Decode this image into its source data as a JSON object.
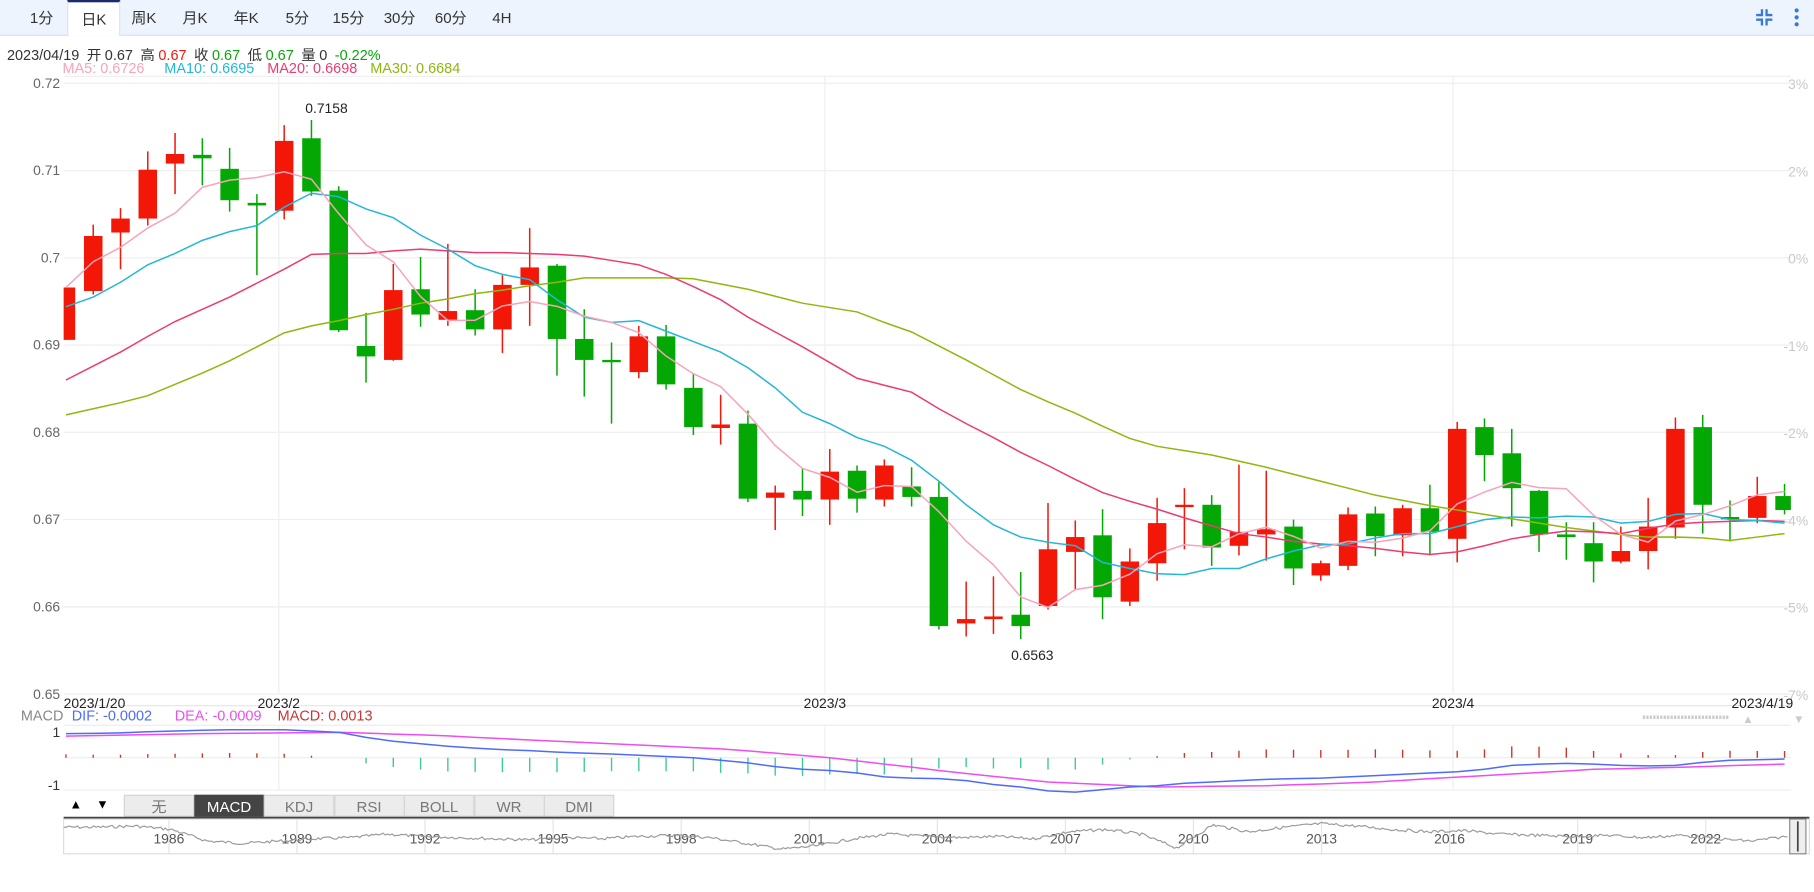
{
  "period_tabs": [
    "1分",
    "日K",
    "周K",
    "月K",
    "年K",
    "5分",
    "15分",
    "30分",
    "60分",
    "4H"
  ],
  "active_period": "日K",
  "toolbar_icons": [
    "compress-icon",
    "more-vertical-icon"
  ],
  "info": {
    "date": "2023/04/19",
    "open_label": "开",
    "open": "0.67",
    "high_label": "高",
    "high": "0.67",
    "close_label": "收",
    "close": "0.67",
    "low_label": "低",
    "low": "0.67",
    "volume_label": "量",
    "volume": "0",
    "change": "-0.22%"
  },
  "ma_legend": [
    {
      "label": "MA5: 0.6726",
      "color": "#f7a3bb"
    },
    {
      "label": "MA10: 0.6695",
      "color": "#25b6d8"
    },
    {
      "label": "MA20: 0.6698",
      "color": "#ec3b73"
    },
    {
      "label": "MA30: 0.6684",
      "color": "#8db80e"
    }
  ],
  "colors": {
    "up": "#f21707",
    "down": "#04a804",
    "grid": "#eeeeee"
  },
  "chart_data": {
    "type": "candlestick",
    "yaxis_left": {
      "ticks": [
        "0.72",
        "0.71",
        "0.7",
        "0.69",
        "0.68",
        "0.67",
        "0.66",
        "0.65"
      ],
      "range": [
        0.65,
        0.72
      ]
    },
    "yaxis_right": {
      "ticks": [
        "3%",
        "2%",
        "0%",
        "-1%",
        "-2%",
        "-4%",
        "-5%",
        "-7%"
      ]
    },
    "xaxis_labels": [
      "2023/1/20",
      "2023/2",
      "2023/3",
      "2023/4",
      "2023/4/19"
    ],
    "annotations": {
      "max": "0.7158",
      "min": "0.6563"
    },
    "ohlc": [
      [
        0.6906,
        0.6966,
        0.6906,
        0.6966
      ],
      [
        0.6962,
        0.7038,
        0.6958,
        0.7025
      ],
      [
        0.7029,
        0.7057,
        0.6987,
        0.7045
      ],
      [
        0.7045,
        0.7122,
        0.7037,
        0.7101
      ],
      [
        0.7108,
        0.7143,
        0.7073,
        0.7119
      ],
      [
        0.7118,
        0.7137,
        0.7083,
        0.7114
      ],
      [
        0.7102,
        0.7126,
        0.7053,
        0.7066
      ],
      [
        0.7063,
        0.7073,
        0.698,
        0.706
      ],
      [
        0.7054,
        0.7152,
        0.7044,
        0.7134
      ],
      [
        0.7137,
        0.7158,
        0.7071,
        0.7076
      ],
      [
        0.7077,
        0.7082,
        0.6915,
        0.6917
      ],
      [
        0.6899,
        0.6937,
        0.6857,
        0.6887
      ],
      [
        0.6883,
        0.6993,
        0.6882,
        0.6963
      ],
      [
        0.6964,
        0.7001,
        0.6921,
        0.6935
      ],
      [
        0.6929,
        0.7016,
        0.6922,
        0.6939
      ],
      [
        0.694,
        0.6964,
        0.6911,
        0.6918
      ],
      [
        0.6918,
        0.698,
        0.6891,
        0.6969
      ],
      [
        0.6969,
        0.7034,
        0.6922,
        0.6989
      ],
      [
        0.6991,
        0.6993,
        0.6865,
        0.6907
      ],
      [
        0.6907,
        0.6941,
        0.6841,
        0.6883
      ],
      [
        0.6883,
        0.6903,
        0.681,
        0.6882
      ],
      [
        0.6869,
        0.6922,
        0.6862,
        0.691
      ],
      [
        0.691,
        0.6923,
        0.6849,
        0.6855
      ],
      [
        0.6851,
        0.6867,
        0.6797,
        0.6806
      ],
      [
        0.6805,
        0.6843,
        0.6786,
        0.6809
      ],
      [
        0.681,
        0.6825,
        0.672,
        0.6724
      ],
      [
        0.6725,
        0.6739,
        0.6688,
        0.6731
      ],
      [
        0.6733,
        0.6758,
        0.6704,
        0.6723
      ],
      [
        0.6723,
        0.6781,
        0.6694,
        0.6755
      ],
      [
        0.6756,
        0.6762,
        0.6708,
        0.6724
      ],
      [
        0.6723,
        0.6769,
        0.6715,
        0.6762
      ],
      [
        0.6738,
        0.676,
        0.6715,
        0.6726
      ],
      [
        0.6726,
        0.6743,
        0.6574,
        0.6578
      ],
      [
        0.6581,
        0.6629,
        0.6566,
        0.6586
      ],
      [
        0.6586,
        0.6635,
        0.6569,
        0.6589
      ],
      [
        0.6591,
        0.664,
        0.6563,
        0.6578
      ],
      [
        0.6601,
        0.6719,
        0.6597,
        0.6666
      ],
      [
        0.6663,
        0.6699,
        0.662,
        0.668
      ],
      [
        0.6682,
        0.6712,
        0.6586,
        0.6611
      ],
      [
        0.6606,
        0.6667,
        0.6601,
        0.6652
      ],
      [
        0.665,
        0.6725,
        0.663,
        0.6696
      ],
      [
        0.6715,
        0.6736,
        0.6666,
        0.6717
      ],
      [
        0.6717,
        0.6728,
        0.6647,
        0.6668
      ],
      [
        0.667,
        0.6763,
        0.6659,
        0.6686
      ],
      [
        0.6683,
        0.6756,
        0.6653,
        0.6689
      ],
      [
        0.6692,
        0.67,
        0.6625,
        0.6644
      ],
      [
        0.6636,
        0.6653,
        0.663,
        0.665
      ],
      [
        0.6647,
        0.6714,
        0.6642,
        0.6706
      ],
      [
        0.6707,
        0.6715,
        0.6658,
        0.6681
      ],
      [
        0.6682,
        0.6717,
        0.6658,
        0.6713
      ],
      [
        0.6713,
        0.674,
        0.6659,
        0.6686
      ],
      [
        0.6678,
        0.6812,
        0.6651,
        0.6804
      ],
      [
        0.6806,
        0.6816,
        0.6744,
        0.6774
      ],
      [
        0.6776,
        0.6804,
        0.6692,
        0.6736
      ],
      [
        0.6733,
        0.6734,
        0.6663,
        0.6683
      ],
      [
        0.6683,
        0.6697,
        0.6654,
        0.668
      ],
      [
        0.6673,
        0.6697,
        0.6628,
        0.6652
      ],
      [
        0.6652,
        0.6692,
        0.665,
        0.6664
      ],
      [
        0.6664,
        0.6725,
        0.6643,
        0.6692
      ],
      [
        0.6691,
        0.6817,
        0.6678,
        0.6804
      ],
      [
        0.6806,
        0.682,
        0.6684,
        0.6717
      ],
      [
        0.6703,
        0.6722,
        0.6675,
        0.6702
      ],
      [
        0.6702,
        0.6749,
        0.6696,
        0.6727
      ],
      [
        0.6727,
        0.6741,
        0.6706,
        0.6711
      ]
    ],
    "ma10": [
      0.6944,
      0.6955,
      0.6972,
      0.6992,
      0.7005,
      0.702,
      0.703,
      0.7037,
      0.7058,
      0.7074,
      0.707,
      0.7056,
      0.7046,
      0.7026,
      0.701,
      0.6991,
      0.6981,
      0.6975,
      0.6952,
      0.6932,
      0.6926,
      0.6928,
      0.6916,
      0.6904,
      0.6892,
      0.6874,
      0.6851,
      0.6823,
      0.681,
      0.6794,
      0.6784,
      0.6768,
      0.6744,
      0.6717,
      0.6694,
      0.668,
      0.6674,
      0.667,
      0.6651,
      0.6644,
      0.6638,
      0.6637,
      0.6644,
      0.6644,
      0.6655,
      0.6664,
      0.6671,
      0.6672,
      0.6679,
      0.6684,
      0.6684,
      0.6692,
      0.67,
      0.6703,
      0.6702,
      0.6704,
      0.6703,
      0.6696,
      0.6698,
      0.6706,
      0.6707,
      0.67,
      0.6699,
      0.6696
    ],
    "ma20": [
      0.686,
      0.6876,
      0.6892,
      0.691,
      0.6927,
      0.6941,
      0.6955,
      0.6971,
      0.6987,
      0.7004,
      0.7005,
      0.7005,
      0.7008,
      0.701,
      0.7008,
      0.7006,
      0.7006,
      0.7005,
      0.7004,
      0.7002,
      0.6997,
      0.6992,
      0.6981,
      0.6967,
      0.6952,
      0.6932,
      0.6915,
      0.6898,
      0.688,
      0.6862,
      0.6854,
      0.6846,
      0.6827,
      0.681,
      0.6794,
      0.6777,
      0.6762,
      0.6746,
      0.6731,
      0.6721,
      0.6712,
      0.6702,
      0.6693,
      0.6684,
      0.668,
      0.6675,
      0.6672,
      0.667,
      0.6667,
      0.6663,
      0.666,
      0.6663,
      0.667,
      0.6678,
      0.6683,
      0.6687,
      0.6686,
      0.6684,
      0.669,
      0.6695,
      0.6697,
      0.6698,
      0.6699,
      0.6698
    ],
    "ma30": [
      0.682,
      0.6827,
      0.6834,
      0.6842,
      0.6855,
      0.6868,
      0.6882,
      0.6898,
      0.6914,
      0.6922,
      0.6928,
      0.6935,
      0.6941,
      0.6948,
      0.6953,
      0.6959,
      0.6963,
      0.6968,
      0.6972,
      0.6977,
      0.6977,
      0.6977,
      0.6977,
      0.6976,
      0.697,
      0.6964,
      0.6956,
      0.6948,
      0.6943,
      0.6938,
      0.6926,
      0.6915,
      0.6899,
      0.6883,
      0.6866,
      0.6849,
      0.6835,
      0.6822,
      0.6807,
      0.6793,
      0.6784,
      0.6779,
      0.6774,
      0.6767,
      0.676,
      0.6752,
      0.6744,
      0.6736,
      0.6728,
      0.6722,
      0.6716,
      0.6711,
      0.6706,
      0.6701,
      0.6696,
      0.6691,
      0.6687,
      0.6683,
      0.668,
      0.668,
      0.6679,
      0.6676,
      0.668,
      0.6684
    ]
  },
  "macd": {
    "title": "MACD",
    "dif_label": "DIF: -0.0002",
    "dea_label": "DEA: -0.0009",
    "macd_label": "MACD: 0.0013",
    "y_ticks": [
      "1",
      "-1"
    ],
    "dif": [
      0.95,
      0.96,
      0.98,
      1.02,
      1.05,
      1.08,
      1.1,
      1.1,
      1.1,
      1.05,
      1.0,
      0.8,
      0.65,
      0.55,
      0.45,
      0.38,
      0.32,
      0.28,
      0.22,
      0.18,
      0.15,
      0.1,
      0.05,
      0.0,
      -0.1,
      -0.2,
      -0.35,
      -0.45,
      -0.5,
      -0.6,
      -0.75,
      -0.8,
      -0.82,
      -0.9,
      -1.05,
      -1.15,
      -1.3,
      -1.35,
      -1.25,
      -1.15,
      -1.1,
      -1.0,
      -0.95,
      -0.9,
      -0.85,
      -0.82,
      -0.8,
      -0.75,
      -0.7,
      -0.65,
      -0.6,
      -0.55,
      -0.45,
      -0.3,
      -0.25,
      -0.22,
      -0.25,
      -0.3,
      -0.32,
      -0.3,
      -0.18,
      -0.1,
      -0.08,
      -0.05
    ],
    "dea": [
      0.85,
      0.87,
      0.89,
      0.91,
      0.93,
      0.95,
      0.96,
      0.97,
      0.98,
      0.99,
      1.0,
      0.97,
      0.93,
      0.9,
      0.86,
      0.8,
      0.75,
      0.7,
      0.65,
      0.6,
      0.55,
      0.5,
      0.45,
      0.4,
      0.35,
      0.27,
      0.18,
      0.09,
      0.0,
      -0.12,
      -0.25,
      -0.37,
      -0.5,
      -0.62,
      -0.73,
      -0.84,
      -0.95,
      -1.0,
      -1.05,
      -1.1,
      -1.15,
      -1.14,
      -1.12,
      -1.11,
      -1.1,
      -1.06,
      -1.03,
      -0.99,
      -0.95,
      -0.89,
      -0.82,
      -0.76,
      -0.7,
      -0.64,
      -0.58,
      -0.52,
      -0.45,
      -0.43,
      -0.4,
      -0.38,
      -0.35,
      -0.31,
      -0.28,
      -0.25
    ],
    "colors": {
      "dif": "#4d6bfe",
      "dea": "#ee4df0",
      "macd": "#cc3535",
      "title": "#888888"
    }
  },
  "indicator_tabs": [
    "无",
    "MACD",
    "KDJ",
    "RSI",
    "BOLL",
    "WR",
    "DMI"
  ],
  "active_indicator": "MACD",
  "scroll_up": "▲",
  "scroll_down": "▼",
  "navigator": {
    "years": [
      "1986",
      "1989",
      "1992",
      "1995",
      "1998",
      "2001",
      "2004",
      "2007",
      "2010",
      "2013",
      "2016",
      "2019",
      "2022"
    ]
  }
}
